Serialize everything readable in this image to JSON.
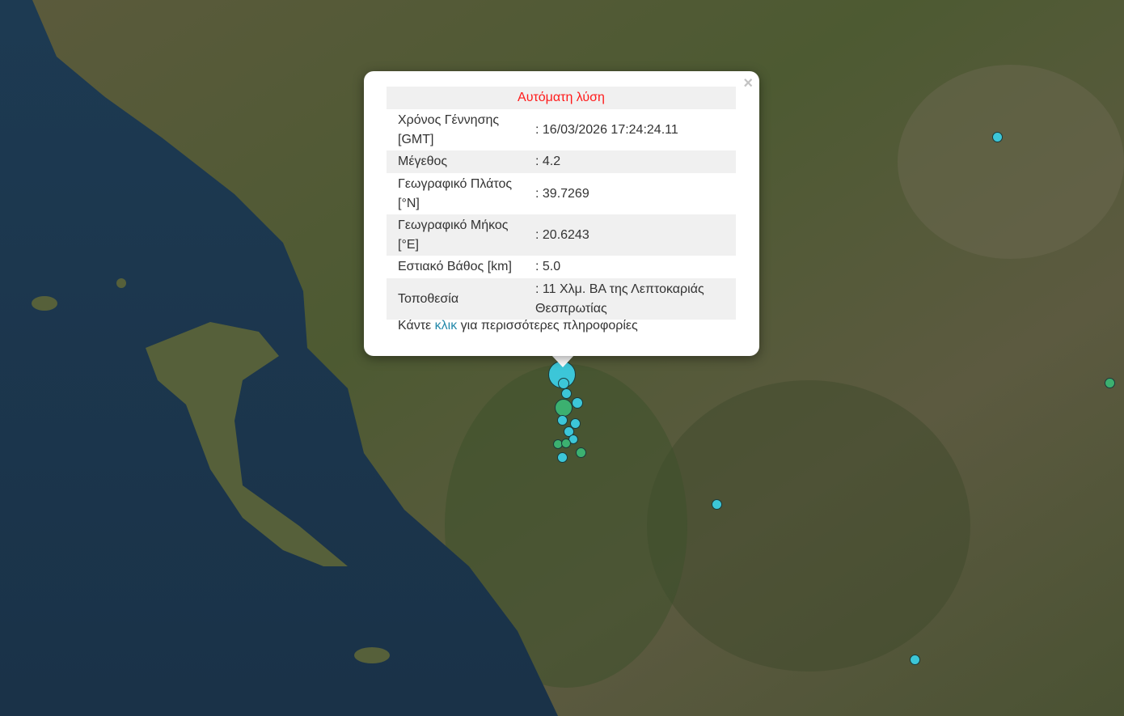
{
  "popup": {
    "title": "Αυτόματη λύση",
    "close_label": "×",
    "rows": [
      {
        "label": "Χρόνος Γέννησης [GMT]",
        "value": ": 16/03/2026 17:24:24.11"
      },
      {
        "label": "Μέγεθος",
        "value": ": 4.2"
      },
      {
        "label": "Γεωγραφικό Πλάτος [°N]",
        "value": ": 39.7269"
      },
      {
        "label": "Γεωγραφικό Μήκος [°E]",
        "value": ": 20.6243"
      },
      {
        "label": "Εστιακό Βάθος [km]",
        "value": ": 5.0"
      },
      {
        "label": "Τοποθεσία",
        "value": ": 11 Χλμ. ΒΑ της Λεπτοκαριάς Θεσπρωτίας"
      }
    ],
    "more_prefix": "Κάντε",
    "more_link": "κλικ",
    "more_suffix": "για περισσότερες πληροφορίες",
    "title_color": "#ff1a1a",
    "link_color": "#2288aa"
  },
  "markers": {
    "recent_color": "#3cc6d8",
    "older_color": "#3cb070"
  }
}
